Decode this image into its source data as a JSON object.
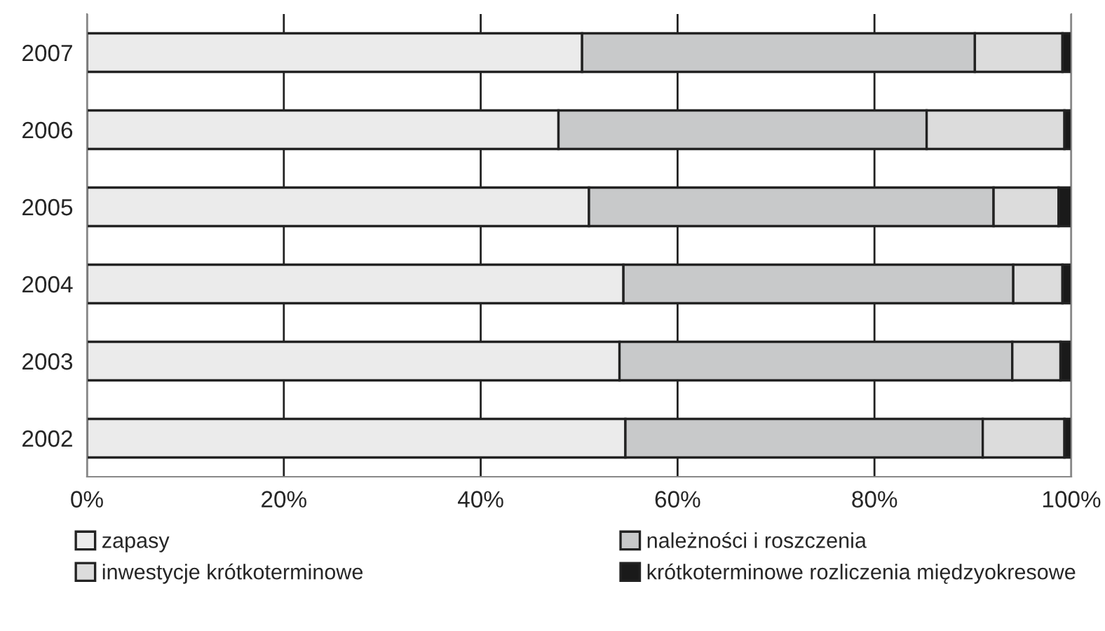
{
  "chart_data": {
    "type": "bar",
    "orientation": "horizontal",
    "stacked": true,
    "categories": [
      "2007",
      "2006",
      "2005",
      "2004",
      "2003",
      "2002"
    ],
    "series": [
      {
        "name": "zapasy",
        "color": "#ebebeb",
        "values": [
          50.3,
          47.9,
          51.0,
          54.5,
          54.1,
          54.7
        ]
      },
      {
        "name": "należności i roszczenia",
        "color": "#c8c9ca",
        "values": [
          39.9,
          37.4,
          41.1,
          39.6,
          39.9,
          36.3
        ]
      },
      {
        "name": "inwestycje krótkoterminowe",
        "color": "#dcdcdc",
        "values": [
          8.9,
          14.0,
          6.6,
          5.0,
          4.9,
          8.3
        ]
      },
      {
        "name": "krótkoterminowe rozliczenia międzyokresowe",
        "color": "#1a1a1a",
        "values": [
          0.9,
          0.7,
          1.3,
          0.9,
          1.1,
          0.7
        ]
      }
    ],
    "xlim": [
      0,
      100
    ],
    "xticks": [
      {
        "value": 0,
        "label": "0%"
      },
      {
        "value": 20,
        "label": "20%"
      },
      {
        "value": 40,
        "label": "40%"
      },
      {
        "value": 60,
        "label": "60%"
      },
      {
        "value": 80,
        "label": "80%"
      },
      {
        "value": 100,
        "label": "100%"
      }
    ],
    "grid": "x",
    "legend": "bottom"
  }
}
